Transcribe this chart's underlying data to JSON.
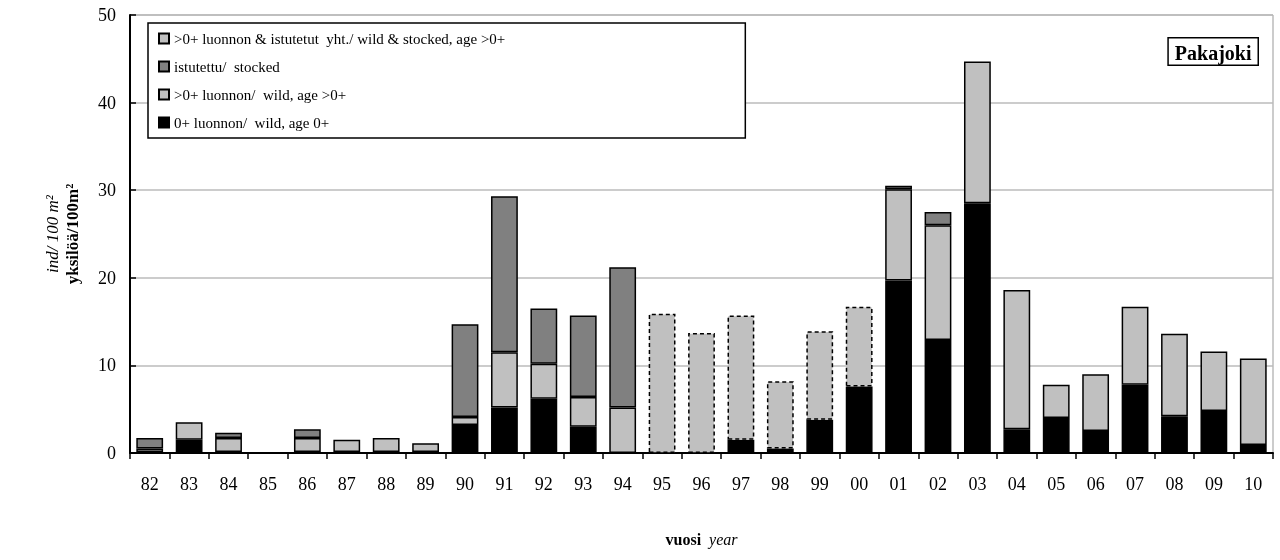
{
  "chart_data": {
    "type": "bar",
    "stacked": true,
    "xlabel": "vuosi year",
    "ylabel": "ind/ 100 m²\nyksilöä/100m²",
    "categories": [
      "82",
      "83",
      "84",
      "85",
      "86",
      "87",
      "88",
      "89",
      "90",
      "91",
      "92",
      "93",
      "94",
      "95",
      "96",
      "97",
      "98",
      "99",
      "00",
      "01",
      "02",
      "03",
      "04",
      "05",
      "06",
      "07",
      "08",
      "09",
      "10"
    ],
    "series": [
      {
        "name": "0+ luonnon/  wild, age 0+",
        "color": "#000000",
        "values": [
          0.1,
          1.5,
          0.1,
          0,
          0.1,
          0.1,
          0.1,
          0.1,
          3.2,
          5.2,
          6.2,
          3.0,
          0,
          0,
          0,
          1.5,
          0.5,
          3.8,
          7.6,
          19.7,
          12.9,
          28.5,
          2.7,
          4.0,
          2.5,
          7.8,
          4.2,
          4.8,
          0.9
        ]
      },
      {
        "name": ">0+ luonnon/  wild, age >0+",
        "color": "#c0c0c0",
        "values": [
          0.4,
          2.0,
          1.6,
          0,
          1.6,
          1.4,
          1.6,
          1.0,
          0.9,
          6.3,
          4.0,
          3.4,
          5.2,
          0,
          0,
          0,
          0,
          0,
          0,
          10.4,
          13.1,
          16.2,
          15.9,
          3.8,
          6.5,
          8.9,
          9.4,
          6.8,
          9.9
        ]
      },
      {
        "name": "istutettu/  stocked",
        "color": "#808080",
        "values": [
          1.2,
          0,
          0.6,
          0,
          1.0,
          0,
          0,
          0,
          10.6,
          17.8,
          6.3,
          9.3,
          16.0,
          0,
          0,
          0,
          0,
          0,
          0,
          0.4,
          1.5,
          0,
          0,
          0,
          0,
          0,
          0,
          0,
          0
        ]
      },
      {
        "name": ">0+ luonnon & istutetut  yht./ wild & stocked, age >0+",
        "color": "#c0c0c0",
        "line_style": "dashed",
        "values": [
          0,
          0,
          0,
          0,
          0,
          0,
          0,
          0,
          0,
          0,
          0,
          0,
          0,
          15.9,
          13.7,
          14.2,
          7.7,
          10.1,
          9.1,
          0,
          0,
          0,
          0,
          0,
          0,
          0,
          0,
          0,
          0
        ]
      }
    ],
    "ylim": [
      0,
      50
    ],
    "yticks": [
      0,
      10,
      20,
      30,
      40,
      50
    ],
    "grid": "y",
    "legend": "top left",
    "annotations": [
      "Pakajoki"
    ]
  }
}
